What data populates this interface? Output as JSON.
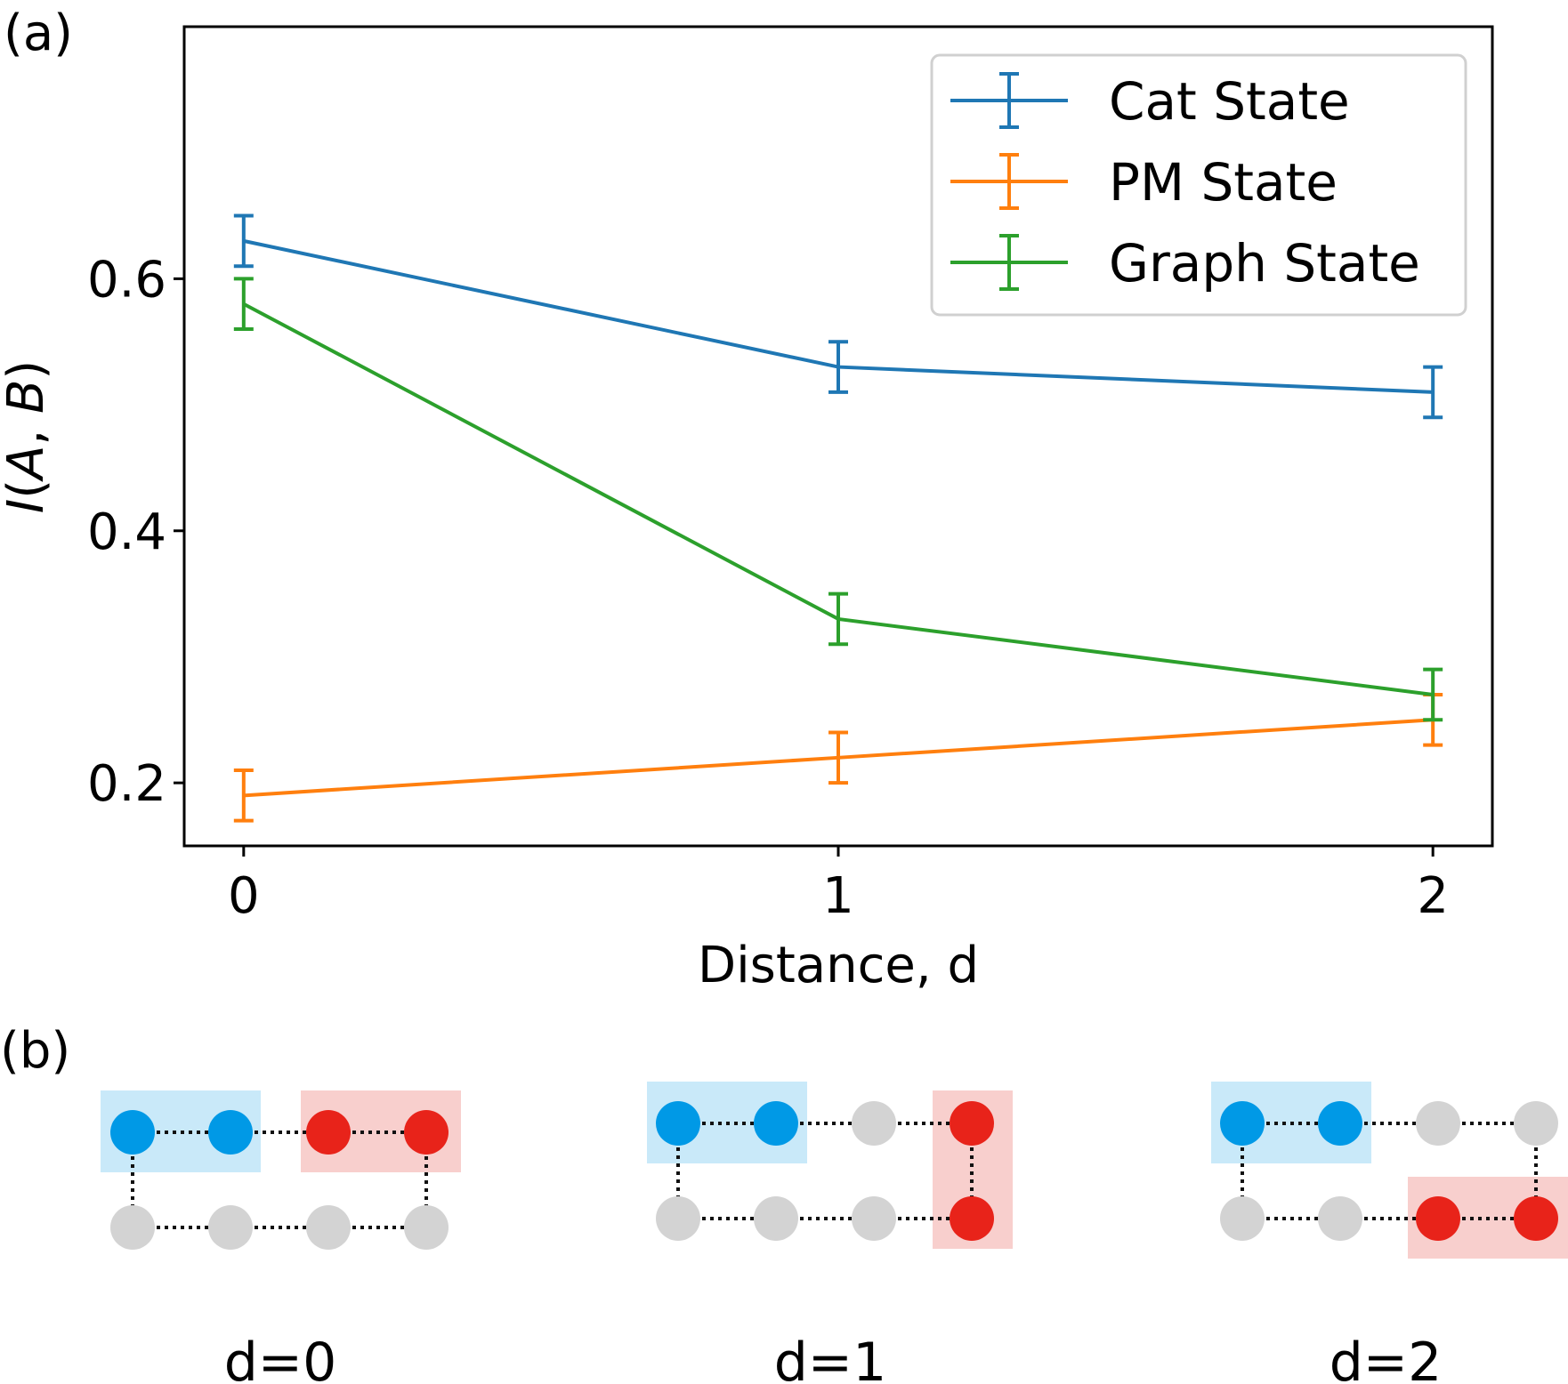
{
  "panel_a_label": "(a)",
  "panel_b_label": "(b)",
  "chart_data": {
    "type": "line",
    "xlabel": "Distance, d",
    "ylabel_parts": [
      "I",
      "(",
      "A",
      ", ",
      "B",
      ")"
    ],
    "x": [
      0,
      1,
      2
    ],
    "xticks": [
      "0",
      "1",
      "2"
    ],
    "yticks": [
      "0.2",
      "0.4",
      "0.6"
    ],
    "ytick_values": [
      0.2,
      0.4,
      0.6
    ],
    "xlim": [
      -0.1,
      2.1
    ],
    "ylim": [
      0.15,
      0.8
    ],
    "grid": false,
    "legend_position": "top-right",
    "series": [
      {
        "name": "Cat State",
        "color": "#1f77b4",
        "values": [
          0.63,
          0.53,
          0.51
        ],
        "errors": [
          0.02,
          0.02,
          0.02
        ]
      },
      {
        "name": "PM State",
        "color": "#ff7f0e",
        "values": [
          0.19,
          0.22,
          0.25
        ],
        "errors": [
          0.02,
          0.02,
          0.02
        ]
      },
      {
        "name": "Graph State",
        "color": "#2ca02c",
        "values": [
          0.58,
          0.33,
          0.27
        ],
        "errors": [
          0.02,
          0.02,
          0.02
        ]
      }
    ]
  },
  "diagrams": [
    {
      "caption": "d=0",
      "distance": 0
    },
    {
      "caption": "d=1",
      "distance": 1
    },
    {
      "caption": "d=2",
      "distance": 2
    }
  ],
  "colors": {
    "subsystem_a_node": "#0099e6",
    "subsystem_a_box": "#c9e9f9",
    "subsystem_b_node": "#e8231a",
    "subsystem_b_box": "#f8cfcd",
    "inactive_node": "#d3d3d3"
  }
}
